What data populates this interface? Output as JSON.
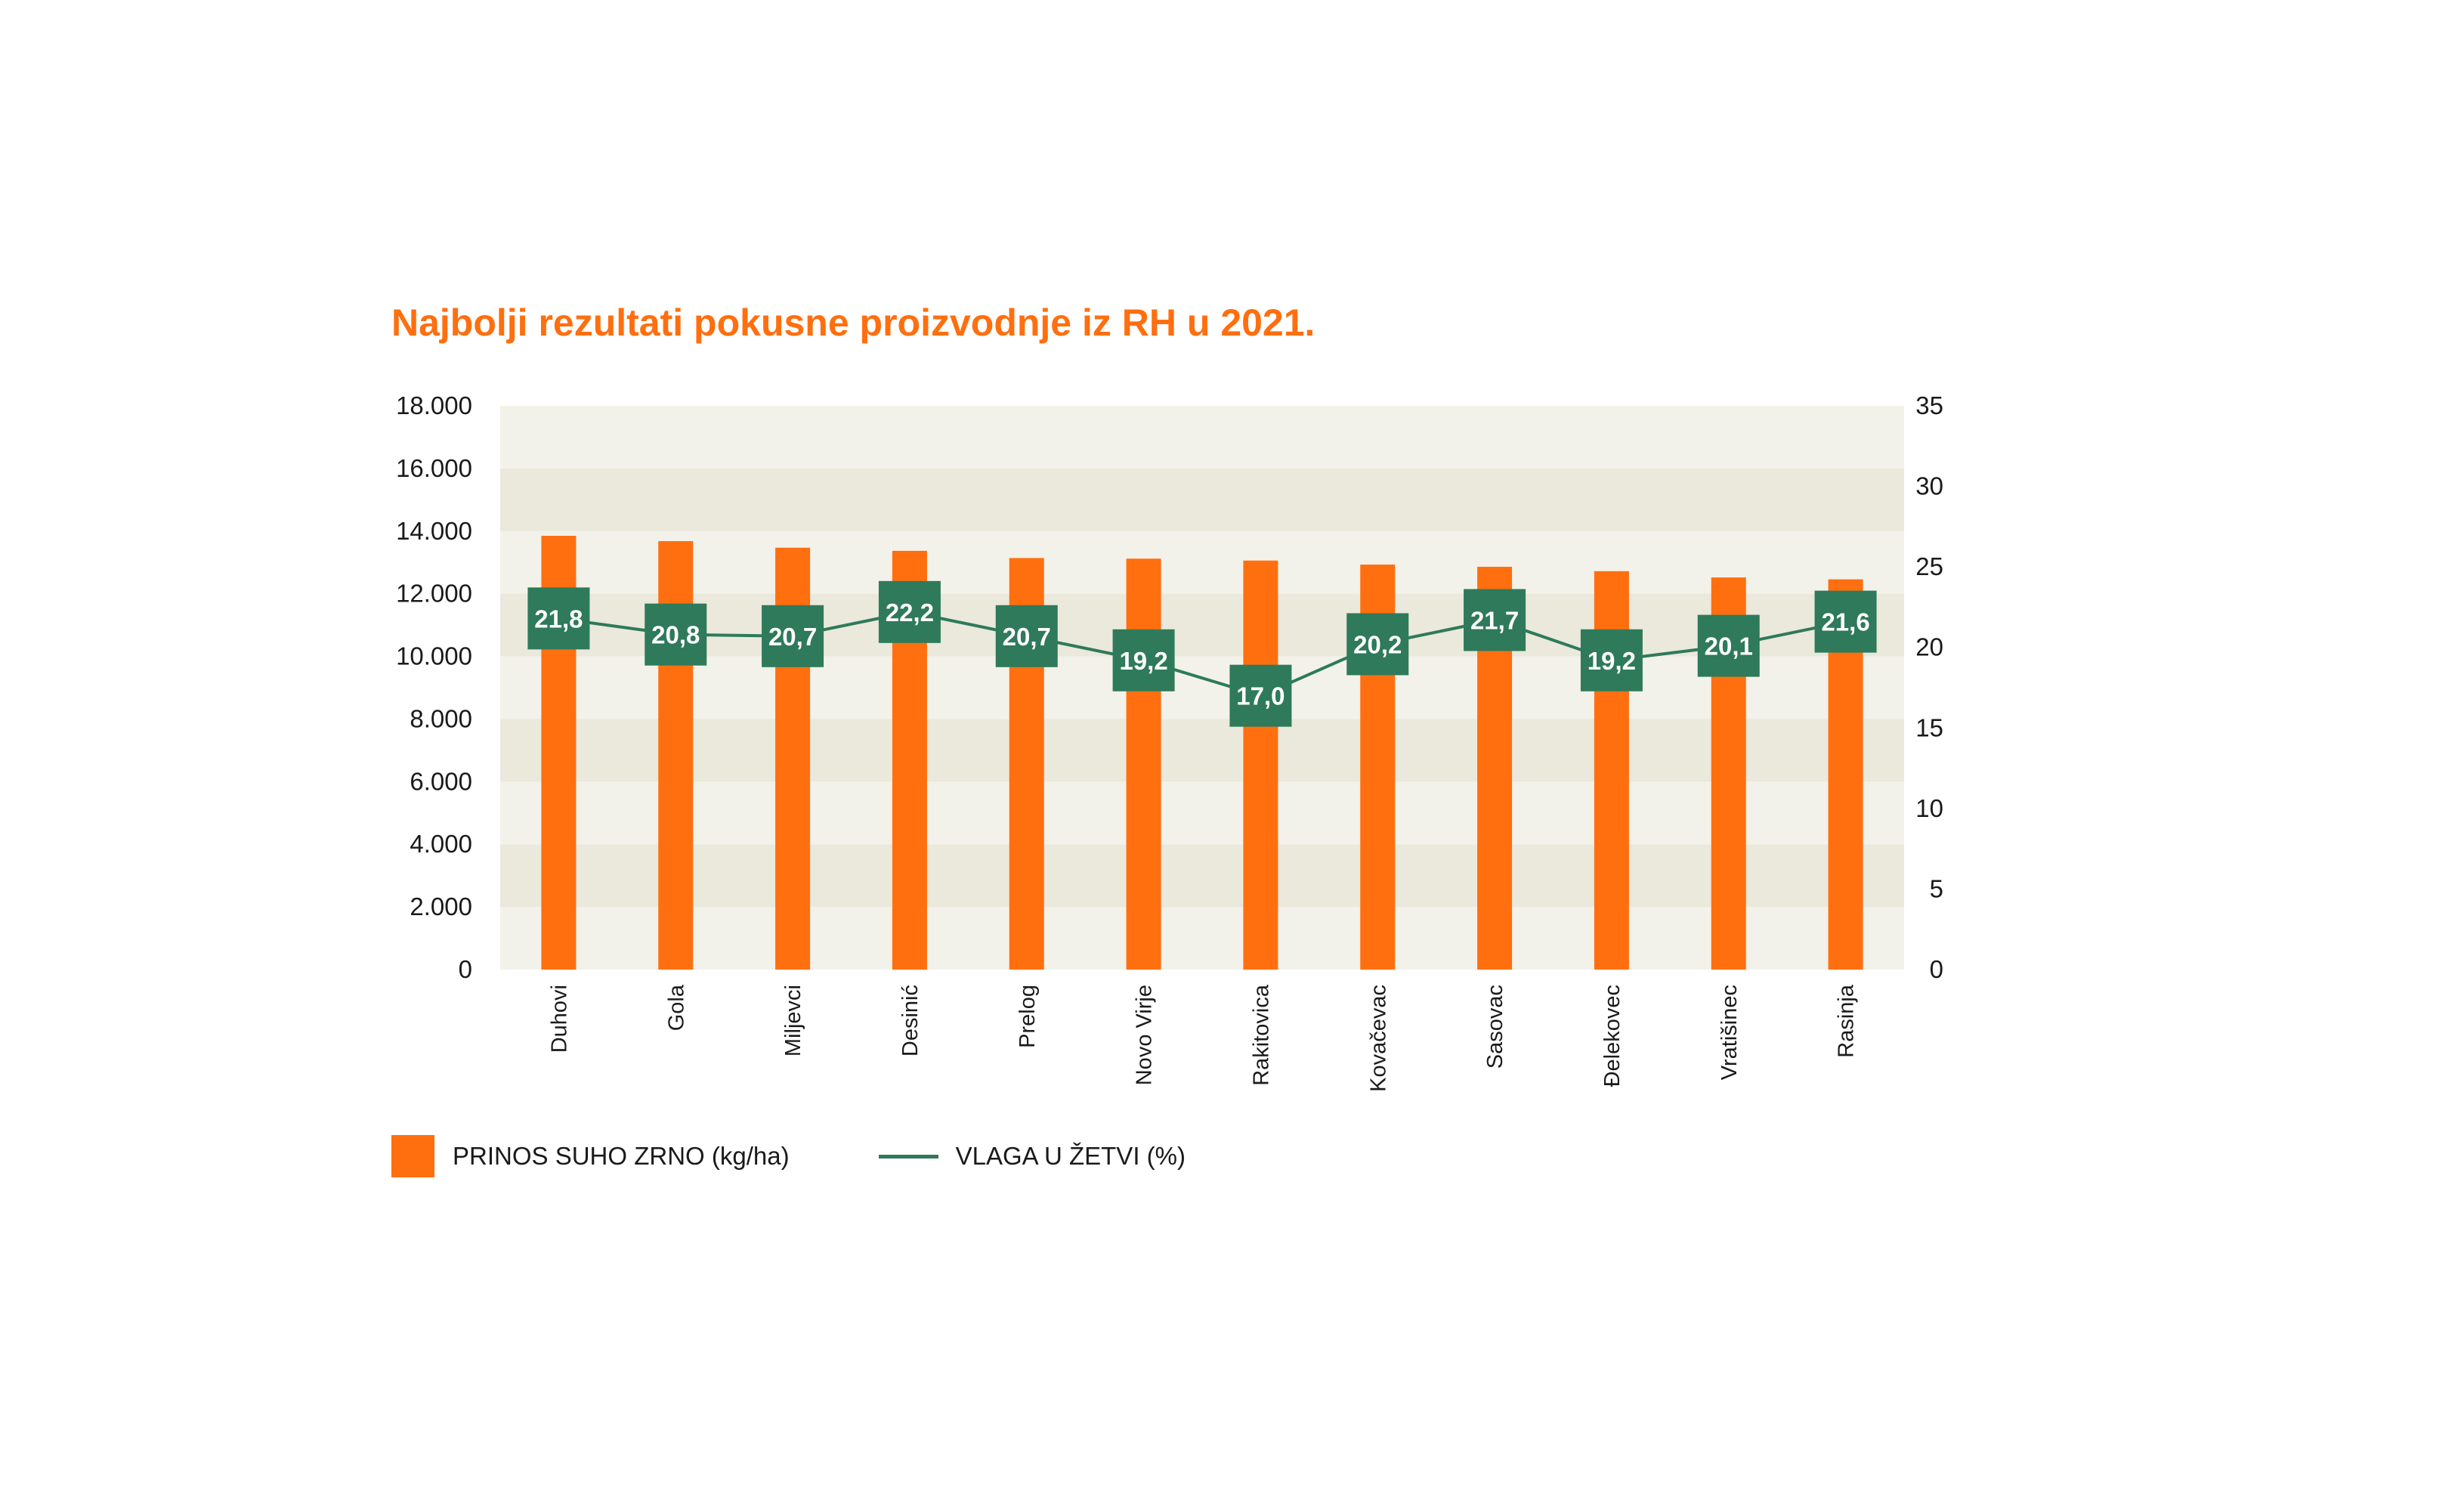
{
  "title": "Najbolji rezultati pokusne proizvodnje iz RH u 2021.",
  "colors": {
    "title": "#ff6f0f",
    "bar": "#ff6f0f",
    "line": "#2e7a5b",
    "band_light": "#f3f2ea",
    "band_dark": "#ebe8dc"
  },
  "chart_data": {
    "type": "bar",
    "title": "Najbolji rezultati pokusne proizvodnje iz RH u 2021.",
    "categories": [
      "Duhovi",
      "Gola",
      "Miljevci",
      "Desinić",
      "Prelog",
      "Novo Virje",
      "Rakitovica",
      "Kovačevac",
      "Sasovac",
      "Đelekovec",
      "Vratišinec",
      "Rasinja"
    ],
    "series": [
      {
        "name": "PRINOS SUHO ZRNO (kg/ha)",
        "type": "bar",
        "axis": "left",
        "values": [
          13850,
          13680,
          13470,
          13370,
          13140,
          13120,
          13060,
          12930,
          12860,
          12720,
          12520,
          12460
        ]
      },
      {
        "name": "VLAGA U ŽETVI (%)",
        "type": "line",
        "axis": "right",
        "values": [
          21.8,
          20.8,
          20.7,
          22.2,
          20.7,
          19.2,
          17.0,
          20.2,
          21.7,
          19.2,
          20.1,
          21.6
        ],
        "labels": [
          "21,8",
          "20,8",
          "20,7",
          "22,2",
          "20,7",
          "19,2",
          "17,0",
          "20,2",
          "21,7",
          "19,2",
          "20,1",
          "21,6"
        ]
      }
    ],
    "y_left": {
      "min": 0,
      "max": 18000,
      "ticks": [
        "0",
        "2.000",
        "4.000",
        "6.000",
        "8.000",
        "10.000",
        "12.000",
        "14.000",
        "16.000",
        "18.000"
      ]
    },
    "y_right": {
      "min": 0,
      "max": 35,
      "ticks": [
        "0",
        "5",
        "10",
        "15",
        "20",
        "25",
        "30",
        "35"
      ]
    },
    "grid": "alternating horizontal bands",
    "legend_position": "bottom-left"
  },
  "legend": {
    "bar_label": "PRINOS SUHO ZRNO (kg/ha)",
    "line_label": "VLAGA U ŽETVI (%)"
  }
}
